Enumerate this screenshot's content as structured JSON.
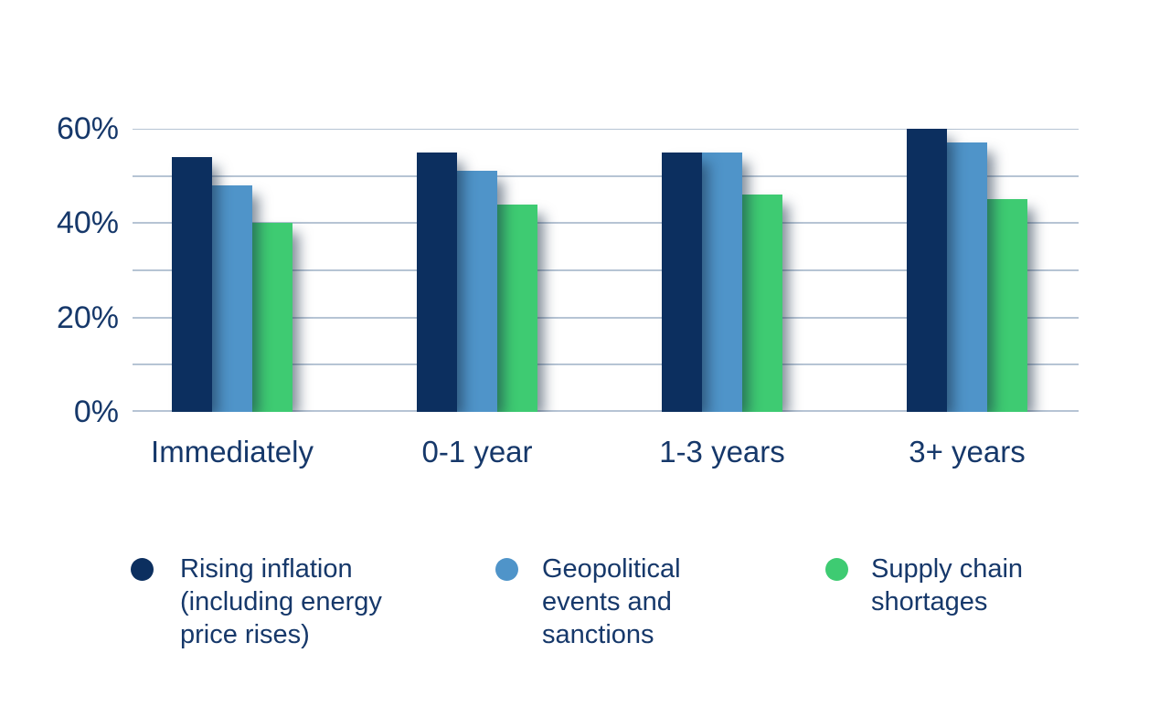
{
  "chart_data": {
    "type": "bar",
    "title": "",
    "xlabel": "",
    "ylabel": "",
    "categories": [
      "Immediately",
      "0-1 year",
      "1-3 years",
      "3+ years"
    ],
    "series": [
      {
        "name": "Rising inflation (including energy price rises)",
        "color": "#0c2f5f",
        "values": [
          54,
          55,
          55,
          60
        ]
      },
      {
        "name": "Geopolitical events and sanctions",
        "color": "#4f94c9",
        "values": [
          48,
          51,
          55,
          57
        ]
      },
      {
        "name": "Supply chain shortages",
        "color": "#3ecb72",
        "values": [
          40,
          44,
          46,
          45
        ]
      }
    ],
    "ylim": [
      0,
      60
    ],
    "grid": true,
    "grid_step": 10,
    "gridline_color": "#b6c4d4",
    "ytick_values": [
      0,
      20,
      40,
      60
    ],
    "ytick_labels": [
      "0%",
      "20%",
      "40%",
      "60%"
    ],
    "legend_position": "bottom",
    "label_color": "#16386a",
    "background": "#ffffff"
  },
  "legend": {
    "items": [
      {
        "label": "Rising inflation (including energy price rises)",
        "color": "#0c2f5f"
      },
      {
        "label": "Geopolitical events and sanctions",
        "color": "#4f94c9"
      },
      {
        "label": "Supply chain shortages",
        "color": "#3ecb72"
      }
    ]
  }
}
